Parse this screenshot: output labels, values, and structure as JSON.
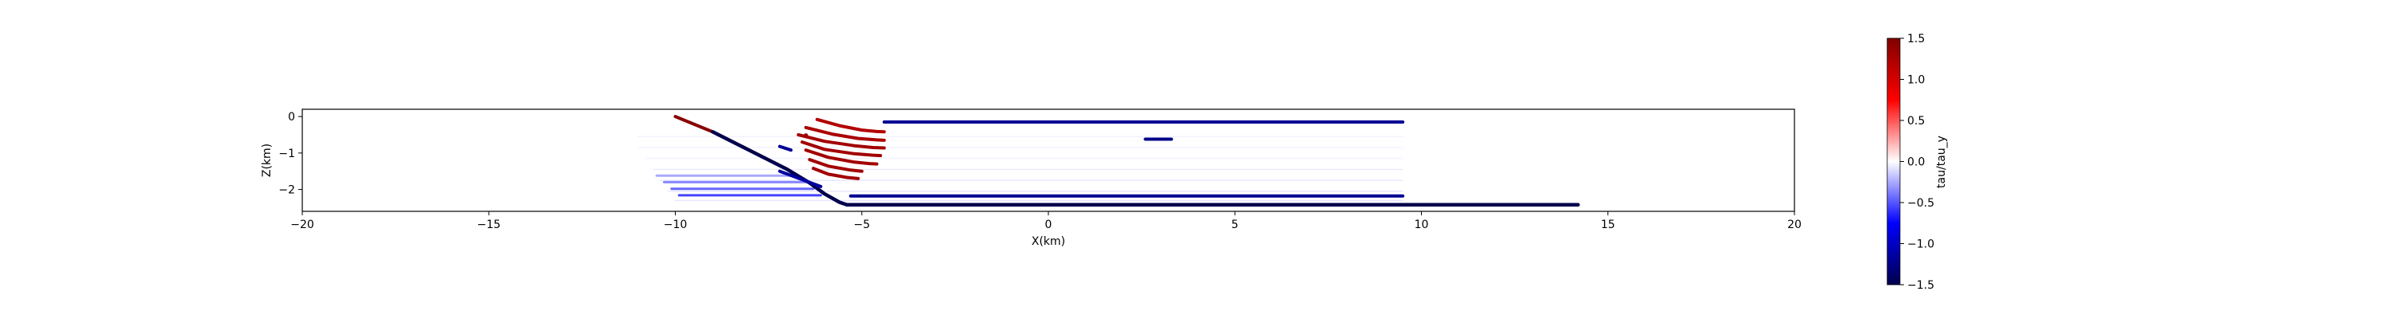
{
  "chart_data": {
    "type": "scatter",
    "xlabel": "X(km)",
    "ylabel": "Z(km)",
    "xlim": [
      -20,
      20
    ],
    "ylim": [
      -2.6,
      0.2
    ],
    "xticks": [
      -20,
      -15,
      -10,
      -5,
      0,
      5,
      10,
      15,
      20
    ],
    "xtick_labels": [
      "−20",
      "−15",
      "−10",
      "−5",
      "0",
      "5",
      "10",
      "15",
      "20"
    ],
    "yticks": [
      0,
      -1,
      -2
    ],
    "ytick_labels": [
      "0",
      "−1",
      "−2"
    ],
    "grid": false,
    "colorbar": {
      "label": "tau/tau_y",
      "cmap": "seismic",
      "vmin": -1.5,
      "vmax": 1.5,
      "ticks": [
        1.5,
        1.0,
        0.5,
        0.0,
        -0.5,
        -1.0,
        -1.5
      ],
      "tick_labels": [
        "1.5",
        "1.0",
        "0.5",
        "0.0",
        "−0.5",
        "−1.0",
        "−1.5"
      ]
    },
    "series": [
      {
        "name": "faint-row-1",
        "kind": "segment",
        "x": [
          -11.0,
          9.5
        ],
        "z": [
          -0.55,
          -0.55
        ],
        "value": -0.05,
        "width": 1.0
      },
      {
        "name": "faint-row-2",
        "kind": "segment",
        "x": [
          -11.0,
          9.5
        ],
        "z": [
          -0.85,
          -0.85
        ],
        "value": -0.05,
        "width": 1.0
      },
      {
        "name": "faint-row-3",
        "kind": "segment",
        "x": [
          -10.8,
          9.5
        ],
        "z": [
          -1.15,
          -1.15
        ],
        "value": -0.05,
        "width": 1.0
      },
      {
        "name": "faint-row-4",
        "kind": "segment",
        "x": [
          -10.6,
          9.5
        ],
        "z": [
          -1.45,
          -1.45
        ],
        "value": -0.08,
        "width": 1.0
      },
      {
        "name": "faint-row-5",
        "kind": "segment",
        "x": [
          -10.4,
          9.5
        ],
        "z": [
          -1.75,
          -1.75
        ],
        "value": -0.1,
        "width": 1.0
      },
      {
        "name": "faint-row-6",
        "kind": "segment",
        "x": [
          -10.2,
          9.5
        ],
        "z": [
          -2.05,
          -2.05
        ],
        "value": -0.1,
        "width": 1.0
      },
      {
        "name": "faint-row-7",
        "kind": "segment",
        "x": [
          -10.0,
          9.5
        ],
        "z": [
          -2.3,
          -2.3
        ],
        "value": -0.1,
        "width": 1.0
      },
      {
        "name": "fan-streak-1",
        "kind": "segment",
        "x": [
          -10.5,
          -6.7
        ],
        "z": [
          -1.62,
          -1.62
        ],
        "value": -0.25,
        "width": 3.0
      },
      {
        "name": "fan-streak-2",
        "kind": "segment",
        "x": [
          -10.3,
          -6.5
        ],
        "z": [
          -1.8,
          -1.8
        ],
        "value": -0.35,
        "width": 3.0
      },
      {
        "name": "fan-streak-3",
        "kind": "segment",
        "x": [
          -10.1,
          -6.3
        ],
        "z": [
          -1.98,
          -1.98
        ],
        "value": -0.45,
        "width": 3.0
      },
      {
        "name": "fan-streak-4",
        "kind": "segment",
        "x": [
          -9.9,
          -6.1
        ],
        "z": [
          -2.16,
          -2.16
        ],
        "value": -0.55,
        "width": 3.0
      },
      {
        "name": "fault-upper-red",
        "kind": "segment",
        "x": [
          -10.0,
          -9.0
        ],
        "z": [
          0.0,
          -0.42
        ],
        "value": 1.45,
        "width": 4.0
      },
      {
        "name": "fault-main",
        "kind": "path",
        "x": [
          -9.0,
          -7.0,
          -6.4,
          -6.0,
          -5.6,
          -5.4
        ],
        "z": [
          -0.42,
          -1.45,
          -1.82,
          -2.12,
          -2.35,
          -2.42
        ],
        "value": -1.5,
        "width": 4.5
      },
      {
        "name": "basal-detachment",
        "kind": "segment",
        "x": [
          -5.4,
          14.2
        ],
        "z": [
          -2.42,
          -2.42
        ],
        "value": -1.5,
        "width": 4.5
      },
      {
        "name": "blue-branch",
        "kind": "segment",
        "x": [
          -7.2,
          -6.1
        ],
        "z": [
          -1.5,
          -1.92
        ],
        "value": -1.15,
        "width": 4.0
      },
      {
        "name": "blue-tick",
        "kind": "segment",
        "x": [
          -7.2,
          -6.9
        ],
        "z": [
          -0.82,
          -0.92
        ],
        "value": -1.2,
        "width": 4.0
      },
      {
        "name": "upper-flat-blue",
        "kind": "segment",
        "x": [
          -4.4,
          9.5
        ],
        "z": [
          -0.15,
          -0.15
        ],
        "value": -1.2,
        "width": 4.0
      },
      {
        "name": "small-flat-blue",
        "kind": "segment",
        "x": [
          2.6,
          3.3
        ],
        "z": [
          -0.62,
          -0.62
        ],
        "value": -1.25,
        "width": 4.0
      },
      {
        "name": "lower-flat-blue",
        "kind": "segment",
        "x": [
          -5.3,
          9.5
        ],
        "z": [
          -2.18,
          -2.18
        ],
        "value": -1.2,
        "width": 4.0
      },
      {
        "name": "red-arc-1",
        "kind": "arc",
        "x": [
          -6.2,
          -5.6,
          -5.0,
          -4.6,
          -4.4
        ],
        "z": [
          -0.08,
          -0.25,
          -0.37,
          -0.41,
          -0.42
        ],
        "value": 1.2,
        "width": 4.0
      },
      {
        "name": "red-arc-2",
        "kind": "arc",
        "x": [
          -6.5,
          -5.8,
          -5.1,
          -4.6,
          -4.4
        ],
        "z": [
          -0.3,
          -0.48,
          -0.6,
          -0.64,
          -0.65
        ],
        "value": 1.25,
        "width": 4.0
      },
      {
        "name": "red-arc-3",
        "kind": "arc",
        "x": [
          -6.7,
          -6.0,
          -5.2,
          -4.7,
          -4.4
        ],
        "z": [
          -0.5,
          -0.68,
          -0.8,
          -0.85,
          -0.86
        ],
        "value": 1.3,
        "width": 4.0
      },
      {
        "name": "red-arc-4",
        "kind": "arc",
        "x": [
          -6.6,
          -6.0,
          -5.2,
          -4.7,
          -4.5
        ],
        "z": [
          -0.7,
          -0.9,
          -1.02,
          -1.06,
          -1.07
        ],
        "value": 1.3,
        "width": 4.0
      },
      {
        "name": "red-arc-5",
        "kind": "arc",
        "x": [
          -6.5,
          -5.9,
          -5.2,
          -4.8,
          -4.6
        ],
        "z": [
          -0.92,
          -1.12,
          -1.25,
          -1.29,
          -1.3
        ],
        "value": 1.3,
        "width": 4.0
      },
      {
        "name": "red-arc-6",
        "kind": "arc",
        "x": [
          -6.4,
          -5.9,
          -5.3,
          -5.0
        ],
        "z": [
          -1.18,
          -1.36,
          -1.47,
          -1.5
        ],
        "value": 1.3,
        "width": 4.0
      },
      {
        "name": "red-arc-7",
        "kind": "arc",
        "x": [
          -6.3,
          -5.9,
          -5.4,
          -5.1
        ],
        "z": [
          -1.42,
          -1.58,
          -1.67,
          -1.7
        ],
        "value": 1.3,
        "width": 4.0
      },
      {
        "name": "red-dot",
        "kind": "point",
        "x": [
          -6.5
        ],
        "z": [
          -0.52
        ],
        "value": 1.3,
        "width": 4.0
      }
    ]
  }
}
